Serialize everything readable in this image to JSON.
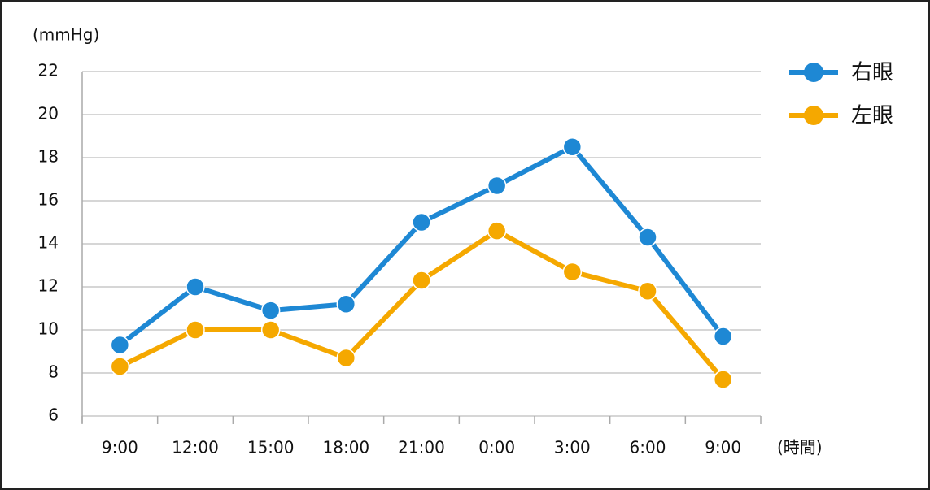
{
  "chart_data": {
    "type": "line",
    "y_label": "(mmHg)",
    "x_label": "(時間)",
    "categories": [
      "9:00",
      "12:00",
      "15:00",
      "18:00",
      "21:00",
      "0:00",
      "3:00",
      "6:00",
      "9:00"
    ],
    "series": [
      {
        "name": "右眼",
        "color": "#1e88d4",
        "values": [
          9.3,
          12.0,
          10.9,
          11.2,
          15.0,
          16.7,
          18.5,
          14.3,
          9.7
        ]
      },
      {
        "name": "左眼",
        "color": "#f5a800",
        "values": [
          8.3,
          10.0,
          10.0,
          8.7,
          12.3,
          14.6,
          12.7,
          11.8,
          7.7
        ]
      }
    ],
    "ylim": [
      6,
      22
    ],
    "yticks": [
      6,
      8,
      10,
      12,
      14,
      16,
      18,
      20,
      22
    ],
    "grid": true,
    "legend": "right"
  }
}
